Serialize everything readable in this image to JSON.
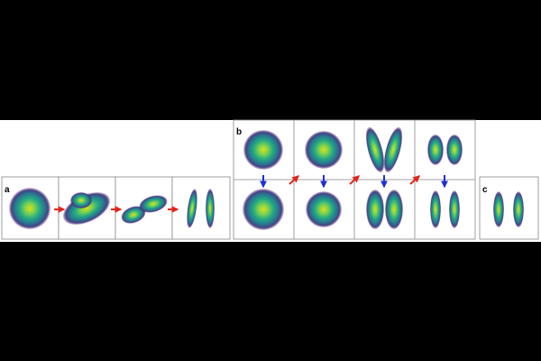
{
  "panels": [
    {
      "label": "a"
    },
    {
      "label": "b"
    },
    {
      "label": "c"
    }
  ]
}
